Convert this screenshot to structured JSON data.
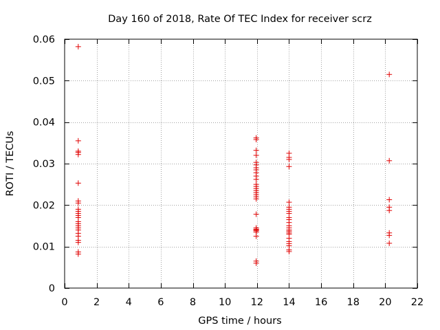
{
  "chart_data": {
    "type": "scatter",
    "title": "Day 160 of 2018, Rate Of TEC Index for receiver scrz",
    "xlabel": "GPS time / hours",
    "ylabel": "ROTI / TECUs",
    "xlim": [
      0,
      22
    ],
    "ylim": [
      0,
      0.06
    ],
    "xticks": [
      0,
      2,
      4,
      6,
      8,
      10,
      12,
      14,
      16,
      18,
      20,
      22
    ],
    "yticks": [
      0,
      0.01,
      0.02,
      0.03,
      0.04,
      0.05,
      0.06
    ],
    "xtick_labels": [
      "0",
      "2",
      "4",
      "6",
      "8",
      "10",
      "12",
      "14",
      "16",
      "18",
      "20",
      "22"
    ],
    "ytick_labels": [
      "0",
      "0.01",
      "0.02",
      "0.03",
      "0.04",
      "0.05",
      "0.06"
    ],
    "grid": true,
    "marker": "+",
    "marker_color": "#e00000",
    "series": [
      {
        "name": "ROTI",
        "points": [
          [
            0.85,
            0.0582
          ],
          [
            0.85,
            0.0355
          ],
          [
            0.85,
            0.033
          ],
          [
            0.85,
            0.0327
          ],
          [
            0.85,
            0.0322
          ],
          [
            0.85,
            0.0253
          ],
          [
            0.85,
            0.021
          ],
          [
            0.85,
            0.0205
          ],
          [
            0.85,
            0.019
          ],
          [
            0.85,
            0.0185
          ],
          [
            0.85,
            0.018
          ],
          [
            0.85,
            0.0175
          ],
          [
            0.85,
            0.017
          ],
          [
            0.85,
            0.016
          ],
          [
            0.85,
            0.0155
          ],
          [
            0.85,
            0.015
          ],
          [
            0.85,
            0.0145
          ],
          [
            0.85,
            0.014
          ],
          [
            0.85,
            0.0132
          ],
          [
            0.85,
            0.0125
          ],
          [
            0.85,
            0.0115
          ],
          [
            0.85,
            0.011
          ],
          [
            0.85,
            0.0087
          ],
          [
            0.85,
            0.0082
          ],
          [
            11.95,
            0.0362
          ],
          [
            11.95,
            0.0358
          ],
          [
            11.95,
            0.0332
          ],
          [
            11.95,
            0.032
          ],
          [
            11.95,
            0.0303
          ],
          [
            11.95,
            0.0297
          ],
          [
            11.95,
            0.029
          ],
          [
            11.95,
            0.0285
          ],
          [
            11.95,
            0.0278
          ],
          [
            11.95,
            0.027
          ],
          [
            11.95,
            0.0262
          ],
          [
            11.95,
            0.025
          ],
          [
            11.95,
            0.0245
          ],
          [
            11.95,
            0.024
          ],
          [
            11.95,
            0.0235
          ],
          [
            11.95,
            0.023
          ],
          [
            11.95,
            0.0225
          ],
          [
            11.95,
            0.022
          ],
          [
            11.95,
            0.0215
          ],
          [
            11.95,
            0.0178
          ],
          [
            11.95,
            0.0145
          ],
          [
            11.95,
            0.0142
          ],
          [
            11.95,
            0.014
          ],
          [
            11.95,
            0.0138
          ],
          [
            11.95,
            0.0135
          ],
          [
            11.95,
            0.0125
          ],
          [
            11.95,
            0.0065
          ],
          [
            11.95,
            0.006
          ],
          [
            14.0,
            0.0325
          ],
          [
            14.0,
            0.0315
          ],
          [
            14.0,
            0.031
          ],
          [
            14.0,
            0.0293
          ],
          [
            14.0,
            0.0207
          ],
          [
            14.0,
            0.0195
          ],
          [
            14.0,
            0.019
          ],
          [
            14.0,
            0.0185
          ],
          [
            14.0,
            0.018
          ],
          [
            14.0,
            0.017
          ],
          [
            14.0,
            0.0165
          ],
          [
            14.0,
            0.0158
          ],
          [
            14.0,
            0.015
          ],
          [
            14.0,
            0.0145
          ],
          [
            14.0,
            0.014
          ],
          [
            14.0,
            0.0137
          ],
          [
            14.0,
            0.0133
          ],
          [
            14.0,
            0.013
          ],
          [
            14.0,
            0.012
          ],
          [
            14.0,
            0.0112
          ],
          [
            14.0,
            0.0107
          ],
          [
            14.0,
            0.0102
          ],
          [
            14.0,
            0.0092
          ],
          [
            14.0,
            0.0088
          ],
          [
            20.25,
            0.0515
          ],
          [
            20.25,
            0.0307
          ],
          [
            20.25,
            0.0213
          ],
          [
            20.25,
            0.0195
          ],
          [
            20.25,
            0.0187
          ],
          [
            20.25,
            0.0133
          ],
          [
            20.25,
            0.0127
          ],
          [
            20.25,
            0.0108
          ]
        ]
      }
    ]
  }
}
